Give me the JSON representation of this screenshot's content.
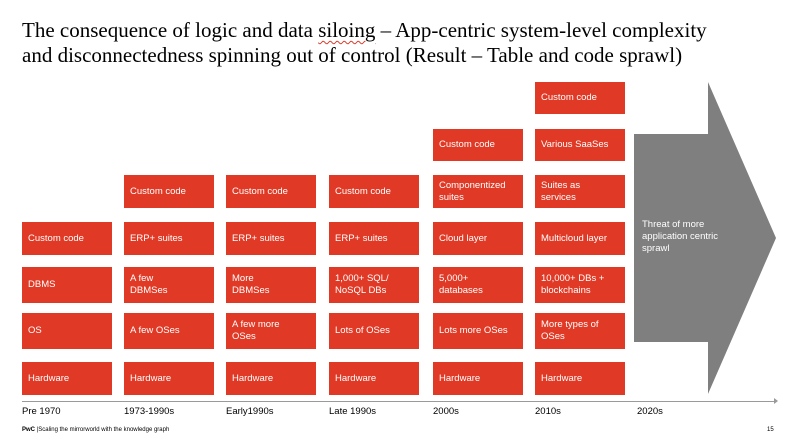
{
  "title": {
    "line1": "The consequence of logic and data ",
    "line1_squiggle": "siloing",
    "line1_rest": " – App-centric system-level complexity",
    "line2": "and disconnectedness spinning out of control (Result – Table and code sprawl)"
  },
  "columns": [
    {
      "era": "Pre 1970",
      "boxes": [
        "Custom code",
        "DBMS",
        "OS",
        "Hardware"
      ]
    },
    {
      "era": "1973-1990s",
      "boxes": [
        "Custom code",
        "ERP+ suites",
        "A few DBMSes",
        "A few OSes",
        "Hardware"
      ]
    },
    {
      "era": "Early1990s",
      "boxes": [
        "Custom code",
        "ERP+ suites",
        "More DBMSes",
        "A few more OSes",
        "Hardware"
      ]
    },
    {
      "era": "Late 1990s",
      "boxes": [
        "Custom code",
        "ERP+ suites",
        "1,000+ SQL/ NoSQL DBs",
        "Lots of OSes",
        "Hardware"
      ]
    },
    {
      "era": "2000s",
      "boxes": [
        "Custom code",
        "Componentized suites",
        "Cloud layer",
        "5,000+ databases",
        "Lots more OSes",
        "Hardware"
      ]
    },
    {
      "era": "2010s",
      "boxes": [
        "Custom code",
        "Various SaaSes",
        "Suites as services",
        "Multicloud layer",
        "10,000+ DBs + blockchains",
        "More types of OSes",
        "Hardware"
      ]
    }
  ],
  "arrow": {
    "label": "Threat of more application centric sprawl",
    "era": "2020s",
    "color": "#7f7f7f"
  },
  "footer": {
    "brand": "PwC",
    "text": " |Scaling the mirrorworld with the knowledge graph",
    "page": "15"
  },
  "colors": {
    "box": "#e03a26",
    "box_text": "#ffffff",
    "arrow": "#7f7f7f"
  }
}
